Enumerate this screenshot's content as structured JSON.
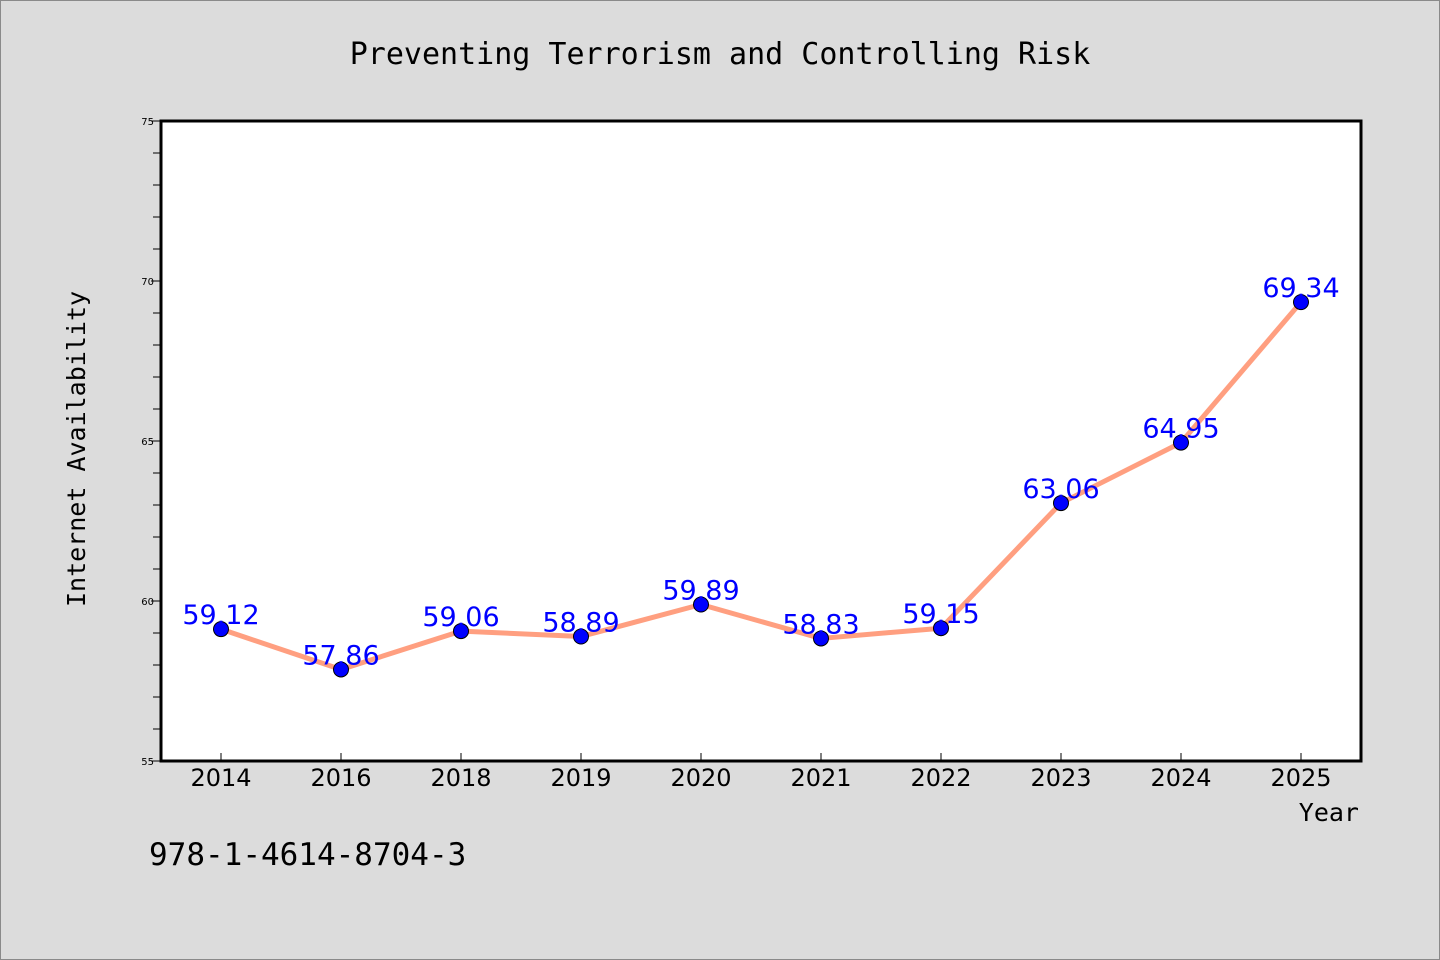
{
  "colors": {
    "background": "#dcdcdc",
    "plot_background": "#ffffff",
    "line": "#ff9f80",
    "marker": "#0000ff",
    "data_label": "#0000ff"
  },
  "footer_text": "978-1-4614-8704-3",
  "chart_data": {
    "type": "line",
    "title": "Preventing Terrorism and Controlling Risk",
    "xlabel": "Year",
    "ylabel": "Internet Availability",
    "categories": [
      "2014",
      "2016",
      "2018",
      "2019",
      "2020",
      "2021",
      "2022",
      "2023",
      "2024",
      "2025"
    ],
    "series": [
      {
        "values": [
          59.12,
          57.86,
          59.06,
          58.89,
          59.89,
          58.83,
          59.15,
          63.06,
          64.95,
          69.34
        ],
        "data_labels": [
          "59.12",
          "57.86",
          "59.06",
          "58.89",
          "59.89",
          "58.83",
          "59.15",
          "63.06",
          "64.95",
          "69.34"
        ]
      }
    ],
    "ylim": [
      55,
      75
    ],
    "yticks": [
      55,
      60,
      65,
      70,
      75
    ],
    "ytick_labels": [
      "55",
      "60",
      "65",
      "70",
      "75"
    ],
    "minor_ytick_step": 1,
    "grid": false,
    "legend": "none"
  }
}
